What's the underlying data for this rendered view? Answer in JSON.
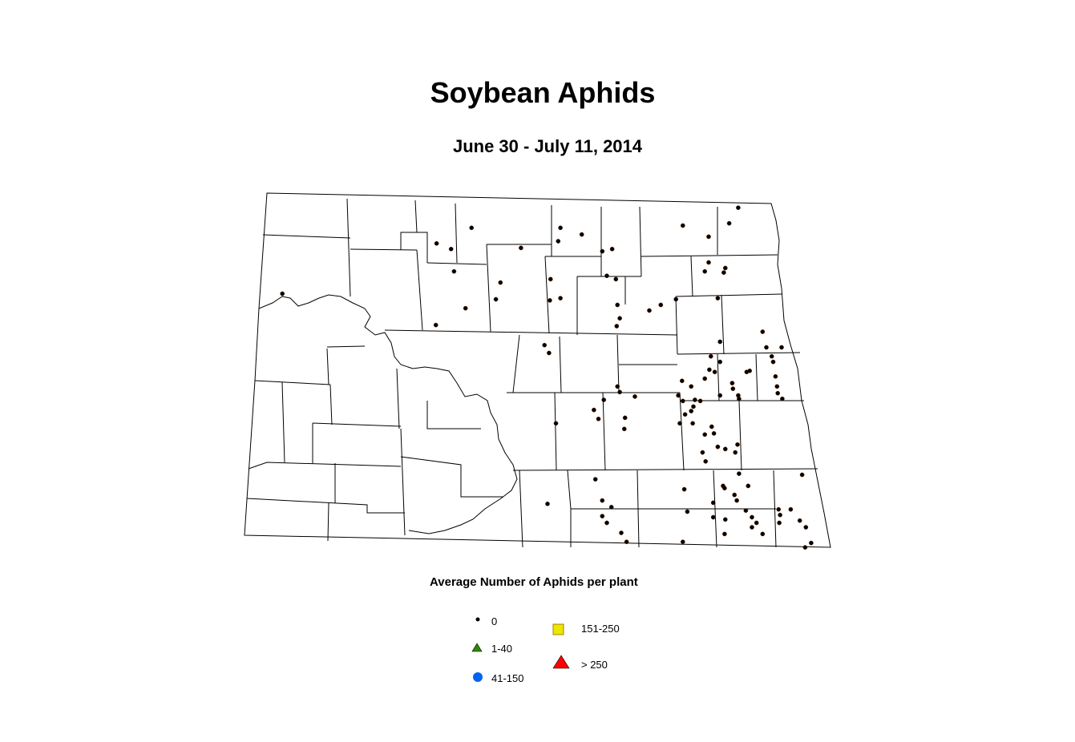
{
  "title": "Soybean Aphids",
  "subtitle": "June 30 - July 11, 2014",
  "legend": {
    "title": "Average Number of Aphids per plant",
    "items": [
      {
        "label": "0",
        "symbol": "dot",
        "color": "#000000"
      },
      {
        "label": "1-40",
        "symbol": "triangle",
        "color": "#2e8b00"
      },
      {
        "label": "41-150",
        "symbol": "circle",
        "color": "#0064f0"
      },
      {
        "label": "151-250",
        "symbol": "square",
        "color": "#e8e800"
      },
      {
        "label": "> 250",
        "symbol": "triangle",
        "color": "#ff0000"
      }
    ]
  },
  "sites": {
    "category": "0",
    "points": [
      [
        -97.71,
        48.92
      ],
      [
        -97.83,
        48.78
      ],
      [
        -98.44,
        48.76
      ],
      [
        -98.1,
        48.66
      ],
      [
        -100.05,
        48.74
      ],
      [
        -101.22,
        48.74
      ],
      [
        -99.77,
        48.68
      ],
      [
        -100.08,
        48.62
      ],
      [
        -101.68,
        48.6
      ],
      [
        -101.49,
        48.55
      ],
      [
        -100.57,
        48.56
      ],
      [
        -99.5,
        48.53
      ],
      [
        -99.37,
        48.55
      ],
      [
        -98.1,
        48.43
      ],
      [
        -98.15,
        48.35
      ],
      [
        -97.88,
        48.38
      ],
      [
        -97.9,
        48.34
      ],
      [
        -101.45,
        48.35
      ],
      [
        -99.44,
        48.31
      ],
      [
        -99.32,
        48.28
      ],
      [
        -100.84,
        48.25
      ],
      [
        -100.18,
        48.28
      ],
      [
        -100.9,
        48.1
      ],
      [
        -100.19,
        48.09
      ],
      [
        -100.05,
        48.11
      ],
      [
        -99.3,
        48.05
      ],
      [
        -98.73,
        48.05
      ],
      [
        -98.88,
        48.0
      ],
      [
        -98.53,
        48.1
      ],
      [
        -97.98,
        48.11
      ],
      [
        -99.27,
        47.93
      ],
      [
        -99.31,
        47.86
      ],
      [
        -101.3,
        48.02
      ],
      [
        -101.69,
        47.87
      ],
      [
        -103.71,
        48.15
      ],
      [
        -97.39,
        47.81
      ],
      [
        -97.95,
        47.72
      ],
      [
        -100.26,
        47.69
      ],
      [
        -100.2,
        47.62
      ],
      [
        -97.34,
        47.67
      ],
      [
        -97.14,
        47.67
      ],
      [
        -97.27,
        47.59
      ],
      [
        -98.07,
        47.59
      ],
      [
        -97.95,
        47.54
      ],
      [
        -98.09,
        47.47
      ],
      [
        -98.02,
        47.45
      ],
      [
        -98.45,
        47.37
      ],
      [
        -98.15,
        47.39
      ],
      [
        -98.33,
        47.32
      ],
      [
        -97.25,
        47.54
      ],
      [
        -97.56,
        47.46
      ],
      [
        -97.6,
        47.45
      ],
      [
        -97.22,
        47.41
      ],
      [
        -97.79,
        47.35
      ],
      [
        -97.78,
        47.3
      ],
      [
        -97.71,
        47.24
      ],
      [
        -97.7,
        47.21
      ],
      [
        -97.95,
        47.24
      ],
      [
        -97.2,
        47.32
      ],
      [
        -97.19,
        47.26
      ],
      [
        -97.13,
        47.21
      ],
      [
        -98.5,
        47.24
      ],
      [
        -98.44,
        47.19
      ],
      [
        -98.28,
        47.2
      ],
      [
        -98.21,
        47.19
      ],
      [
        -99.3,
        47.32
      ],
      [
        -99.27,
        47.27
      ],
      [
        -99.07,
        47.23
      ],
      [
        -99.48,
        47.2
      ],
      [
        -99.61,
        47.11
      ],
      [
        -99.55,
        47.03
      ],
      [
        -99.2,
        47.04
      ],
      [
        -99.21,
        46.94
      ],
      [
        -100.11,
        46.99
      ],
      [
        -98.3,
        47.14
      ],
      [
        -98.33,
        47.1
      ],
      [
        -98.41,
        47.07
      ],
      [
        -98.48,
        46.99
      ],
      [
        -98.31,
        46.99
      ],
      [
        -98.06,
        46.96
      ],
      [
        -98.03,
        46.9
      ],
      [
        -98.15,
        46.89
      ],
      [
        -97.88,
        46.76
      ],
      [
        -97.72,
        46.8
      ],
      [
        -97.75,
        46.73
      ],
      [
        -98.18,
        46.73
      ],
      [
        -98.14,
        46.65
      ],
      [
        -97.98,
        46.78
      ],
      [
        -96.87,
        46.53
      ],
      [
        -97.7,
        46.54
      ],
      [
        -97.91,
        46.43
      ],
      [
        -97.89,
        46.41
      ],
      [
        -97.58,
        46.43
      ],
      [
        -97.76,
        46.35
      ],
      [
        -97.73,
        46.3
      ],
      [
        -98.42,
        46.4
      ],
      [
        -98.04,
        46.28
      ],
      [
        -99.59,
        46.49
      ],
      [
        -99.5,
        46.3
      ],
      [
        -99.38,
        46.24
      ],
      [
        -100.22,
        46.27
      ],
      [
        -98.38,
        46.2
      ],
      [
        -97.61,
        46.21
      ],
      [
        -97.53,
        46.15
      ],
      [
        -97.47,
        46.1
      ],
      [
        -97.53,
        46.06
      ],
      [
        -97.88,
        46.13
      ],
      [
        -98.04,
        46.15
      ],
      [
        -97.18,
        46.22
      ],
      [
        -97.02,
        46.22
      ],
      [
        -97.16,
        46.17
      ],
      [
        -96.9,
        46.12
      ],
      [
        -96.82,
        46.06
      ],
      [
        -97.39,
        46.0
      ],
      [
        -97.89,
        46.0
      ],
      [
        -98.44,
        45.93
      ],
      [
        -99.5,
        46.16
      ],
      [
        -99.44,
        46.1
      ],
      [
        -99.25,
        46.01
      ],
      [
        -99.18,
        45.93
      ],
      [
        -96.75,
        45.92
      ],
      [
        -96.83,
        45.88
      ],
      [
        -97.17,
        46.1
      ]
    ]
  }
}
